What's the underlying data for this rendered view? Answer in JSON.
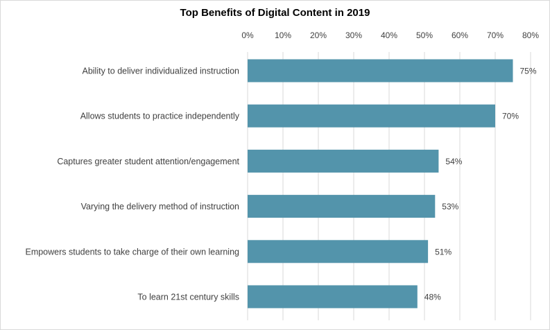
{
  "chart_data": {
    "type": "bar",
    "orientation": "horizontal",
    "title": "Top Benefits of Digital Content in 2019",
    "categories": [
      "Ability to deliver individualized instruction",
      "Allows students to practice independently",
      "Captures greater student attention/engagement",
      "Varying the delivery method of instruction",
      "Empowers students to take charge of their own learning",
      "To learn 21st century skills"
    ],
    "values": [
      75,
      70,
      54,
      53,
      51,
      48
    ],
    "data_labels": [
      "75%",
      "70%",
      "54%",
      "53%",
      "51%",
      "48%"
    ],
    "xlim": [
      0,
      80
    ],
    "x_ticks": [
      0,
      10,
      20,
      30,
      40,
      50,
      60,
      70,
      80
    ],
    "x_tick_labels": [
      "0%",
      "10%",
      "20%",
      "30%",
      "40%",
      "50%",
      "60%",
      "70%",
      "80%"
    ],
    "axis_position": "top",
    "grid": true,
    "bar_color": "#5394ab",
    "xlabel": "",
    "ylabel": ""
  }
}
